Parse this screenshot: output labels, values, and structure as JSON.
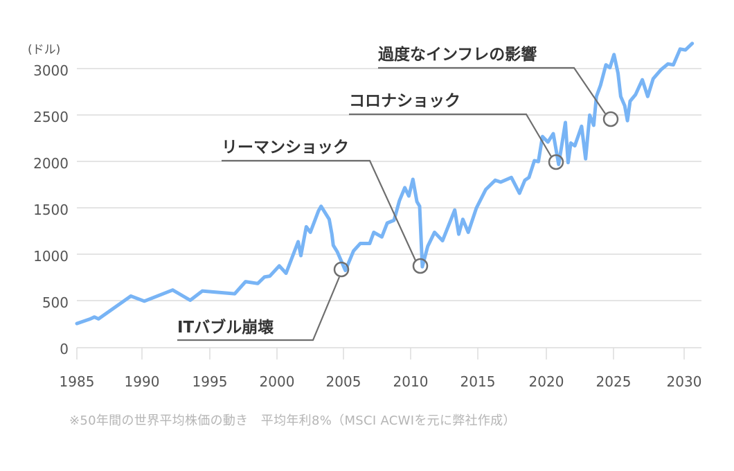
{
  "chart_data": {
    "type": "line",
    "title": "",
    "xlabel": "",
    "ylabel": "(ドル)",
    "xlim": [
      1985,
      2030
    ],
    "ylim": [
      0,
      3000
    ],
    "grid": true,
    "x_ticks": [
      1985,
      1990,
      1995,
      2000,
      2005,
      2010,
      2015,
      2020,
      2025,
      2030
    ],
    "y_ticks": [
      0,
      500,
      1000,
      1500,
      2000,
      2500,
      3000
    ],
    "line_color": "#78b4f5",
    "series": [
      {
        "name": "世界平均株価",
        "points": [
          [
            1985.0,
            260
          ],
          [
            1986.0,
            310
          ],
          [
            1986.3,
            330
          ],
          [
            1986.6,
            310
          ],
          [
            1989.0,
            555
          ],
          [
            1990.0,
            500
          ],
          [
            1992.1,
            620
          ],
          [
            1993.4,
            510
          ],
          [
            1994.3,
            610
          ],
          [
            1996.7,
            580
          ],
          [
            1997.5,
            710
          ],
          [
            1998.4,
            690
          ],
          [
            1998.9,
            760
          ],
          [
            1999.3,
            770
          ],
          [
            2000.0,
            880
          ],
          [
            2000.5,
            800
          ],
          [
            2001.4,
            1140
          ],
          [
            2001.6,
            990
          ],
          [
            2002.0,
            1300
          ],
          [
            2002.3,
            1240
          ],
          [
            2002.9,
            1470
          ],
          [
            2003.1,
            1520
          ],
          [
            2003.7,
            1380
          ],
          [
            2003.9,
            1220
          ],
          [
            2004.0,
            1100
          ],
          [
            2004.3,
            1030
          ],
          [
            2004.9,
            830
          ],
          [
            2005.5,
            1040
          ],
          [
            2006.0,
            1120
          ],
          [
            2006.7,
            1120
          ],
          [
            2007.0,
            1240
          ],
          [
            2007.6,
            1190
          ],
          [
            2008.0,
            1340
          ],
          [
            2008.5,
            1370
          ],
          [
            2008.9,
            1580
          ],
          [
            2009.3,
            1720
          ],
          [
            2009.6,
            1630
          ],
          [
            2009.9,
            1810
          ],
          [
            2010.2,
            1570
          ],
          [
            2010.4,
            1520
          ],
          [
            2010.6,
            870
          ],
          [
            2011.0,
            1090
          ],
          [
            2011.5,
            1240
          ],
          [
            2012.1,
            1150
          ],
          [
            2013.0,
            1480
          ],
          [
            2013.3,
            1220
          ],
          [
            2013.6,
            1380
          ],
          [
            2014.0,
            1240
          ],
          [
            2014.6,
            1500
          ],
          [
            2015.3,
            1700
          ],
          [
            2016.0,
            1800
          ],
          [
            2016.4,
            1780
          ],
          [
            2017.2,
            1830
          ],
          [
            2017.8,
            1660
          ],
          [
            2018.2,
            1800
          ],
          [
            2018.5,
            1830
          ],
          [
            2018.9,
            2010
          ],
          [
            2019.2,
            2000
          ],
          [
            2019.5,
            2270
          ],
          [
            2019.9,
            2210
          ],
          [
            2020.3,
            2300
          ],
          [
            2020.7,
            1970
          ],
          [
            2021.2,
            2420
          ],
          [
            2021.4,
            1990
          ],
          [
            2021.6,
            2200
          ],
          [
            2021.9,
            2170
          ],
          [
            2022.4,
            2380
          ],
          [
            2022.7,
            2030
          ],
          [
            2023.0,
            2500
          ],
          [
            2023.3,
            2390
          ],
          [
            2023.5,
            2700
          ],
          [
            2023.8,
            2820
          ],
          [
            2024.2,
            3040
          ],
          [
            2024.5,
            3010
          ],
          [
            2024.8,
            3150
          ],
          [
            2025.1,
            2950
          ],
          [
            2025.3,
            2700
          ],
          [
            2025.6,
            2600
          ],
          [
            2025.8,
            2440
          ],
          [
            2026.0,
            2650
          ],
          [
            2026.4,
            2720
          ],
          [
            2026.9,
            2880
          ],
          [
            2027.3,
            2700
          ],
          [
            2027.7,
            2890
          ],
          [
            2028.3,
            2990
          ],
          [
            2028.8,
            3050
          ],
          [
            2029.2,
            3040
          ],
          [
            2029.7,
            3210
          ],
          [
            2030.1,
            3200
          ],
          [
            2030.6,
            3270
          ]
        ]
      }
    ],
    "annotations": [
      {
        "label": "ITバブル崩壊",
        "x": 2004.9,
        "y": 830
      },
      {
        "label": "リーマンショック",
        "x": 2010.6,
        "y": 870
      },
      {
        "label": "コロナショック",
        "x": 2020.7,
        "y": 1970
      },
      {
        "label": "過度なインフレの影響",
        "x": 2025.8,
        "y": 2440
      }
    ]
  },
  "axis": {
    "unit_label": "(ドル)",
    "y_ticks": [
      "0",
      "500",
      "1000",
      "1500",
      "2000",
      "2500",
      "3000"
    ],
    "x_ticks": [
      "1985",
      "1990",
      "1995",
      "2000",
      "2005",
      "2010",
      "2015",
      "2020",
      "2025",
      "2030"
    ]
  },
  "annotations": {
    "it_bubble": "ITバブル崩壊",
    "lehman": "リーマンショック",
    "corona": "コロナショック",
    "inflation": "過度なインフレの影響"
  },
  "caption": "※50年間の世界平均株価の動き　平均年利8%（MSCI ACWIを元に弊社作成）"
}
